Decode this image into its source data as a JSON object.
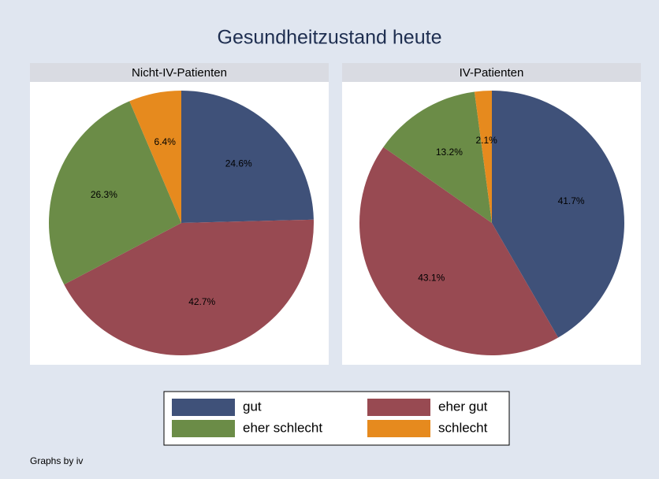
{
  "title": "Gesundheitzustand heute",
  "note": "Graphs by iv",
  "chart_data": [
    {
      "type": "pie",
      "title": "Nicht-IV-Patienten",
      "categories": [
        "gut",
        "eher gut",
        "eher schlecht",
        "schlecht"
      ],
      "values": [
        24.6,
        42.7,
        26.3,
        6.4
      ],
      "value_labels": [
        "24.6%",
        "42.7%",
        "26.3%",
        "6.4%"
      ],
      "colors": [
        "#3f5179",
        "#984a52",
        "#6b8c47",
        "#e68a1e"
      ]
    },
    {
      "type": "pie",
      "title": "IV-Patienten",
      "categories": [
        "gut",
        "eher gut",
        "eher schlecht",
        "schlecht"
      ],
      "values": [
        41.7,
        43.1,
        13.2,
        2.1
      ],
      "value_labels": [
        "41.7%",
        "43.1%",
        "13.2%",
        "2.1%"
      ],
      "colors": [
        "#3f5179",
        "#984a52",
        "#6b8c47",
        "#e68a1e"
      ]
    }
  ]
}
